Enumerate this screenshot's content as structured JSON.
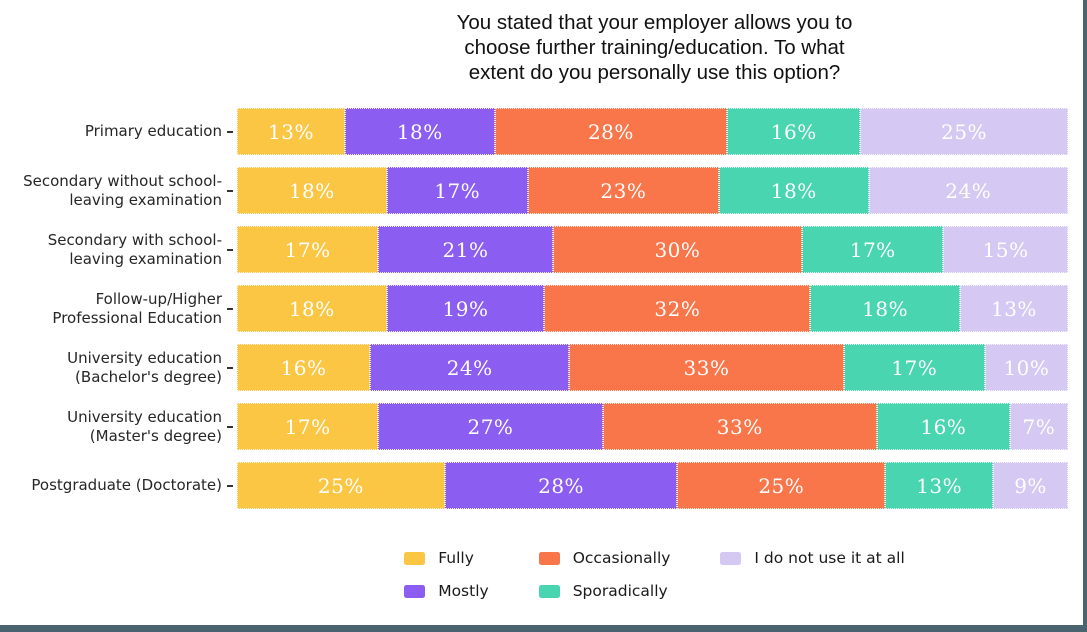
{
  "frame": {
    "background": "#ffffff",
    "border_color": "#4A6470"
  },
  "chart_data": {
    "type": "bar",
    "orientation": "horizontal",
    "stacked": true,
    "title": "You stated that your employer allows you to\nchoose further training/education. To what\nextent do you personally use this option?",
    "categories": [
      "Primary education",
      "Secondary without school-\nleaving examination",
      "Secondary with school-\nleaving examination",
      "Follow-up/Higher\nProfessional Education",
      "University education\n(Bachelor's degree)",
      "University education\n(Master's degree)",
      "Postgraduate (Doctorate)"
    ],
    "series": [
      {
        "name": "Fully",
        "color": "#FBC644",
        "values": [
          13,
          18,
          17,
          18,
          16,
          17,
          25
        ]
      },
      {
        "name": "Mostly",
        "color": "#8C5DF1",
        "values": [
          18,
          17,
          21,
          19,
          24,
          27,
          28
        ]
      },
      {
        "name": "Occasionally",
        "color": "#F8764A",
        "values": [
          28,
          23,
          30,
          32,
          33,
          33,
          25
        ]
      },
      {
        "name": "Sporadically",
        "color": "#49D5B0",
        "values": [
          16,
          18,
          17,
          18,
          17,
          16,
          13
        ]
      },
      {
        "name": "I do not use it at all",
        "color": "#D5C8F3",
        "values": [
          25,
          24,
          15,
          13,
          10,
          7,
          9
        ]
      }
    ],
    "value_suffix": "%",
    "xlim": [
      0,
      100
    ],
    "grid": false,
    "legend_position": "bottom",
    "legend_display_order": [
      0,
      2,
      4,
      1,
      3
    ],
    "label_text_color": "#ffffff"
  }
}
